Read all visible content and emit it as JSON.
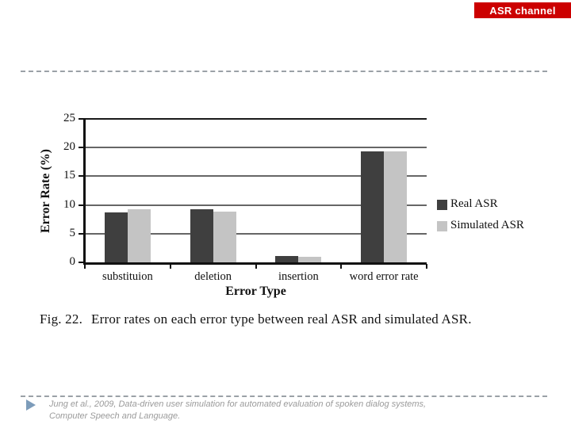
{
  "banner": {
    "label": "ASR channel",
    "bg": "#cc0000",
    "fg": "#ffffff"
  },
  "caption": {
    "prefix": "Fig. 22.",
    "text": "Error rates on each error type between real ASR and simulated ASR."
  },
  "footer": {
    "bullet_icon": "play-triangle-icon",
    "line1": "Jung et al., 2009, Data-driven user simulation for automated evaluation of spoken dialog systems,",
    "line2": "Computer Speech and Language."
  },
  "chart_data": {
    "type": "bar",
    "title": "",
    "categories": [
      "substituion",
      "deletion",
      "insertion",
      "word error rate"
    ],
    "series": [
      {
        "name": "Real ASR",
        "color": "#3f3f3f",
        "values": [
          8.7,
          9.3,
          1.1,
          19.3
        ]
      },
      {
        "name": "Simulated ASR",
        "color": "#c4c4c4",
        "values": [
          9.2,
          8.9,
          1.0,
          19.4
        ]
      }
    ],
    "xlabel": "Error Type",
    "ylabel": "Error Rate (%)",
    "ylim": [
      0,
      25
    ],
    "ytick_step": 5,
    "grid": true,
    "gridline_color": "#666666",
    "top_gridline_color": "#1a1a1a",
    "legend_position": "right"
  }
}
